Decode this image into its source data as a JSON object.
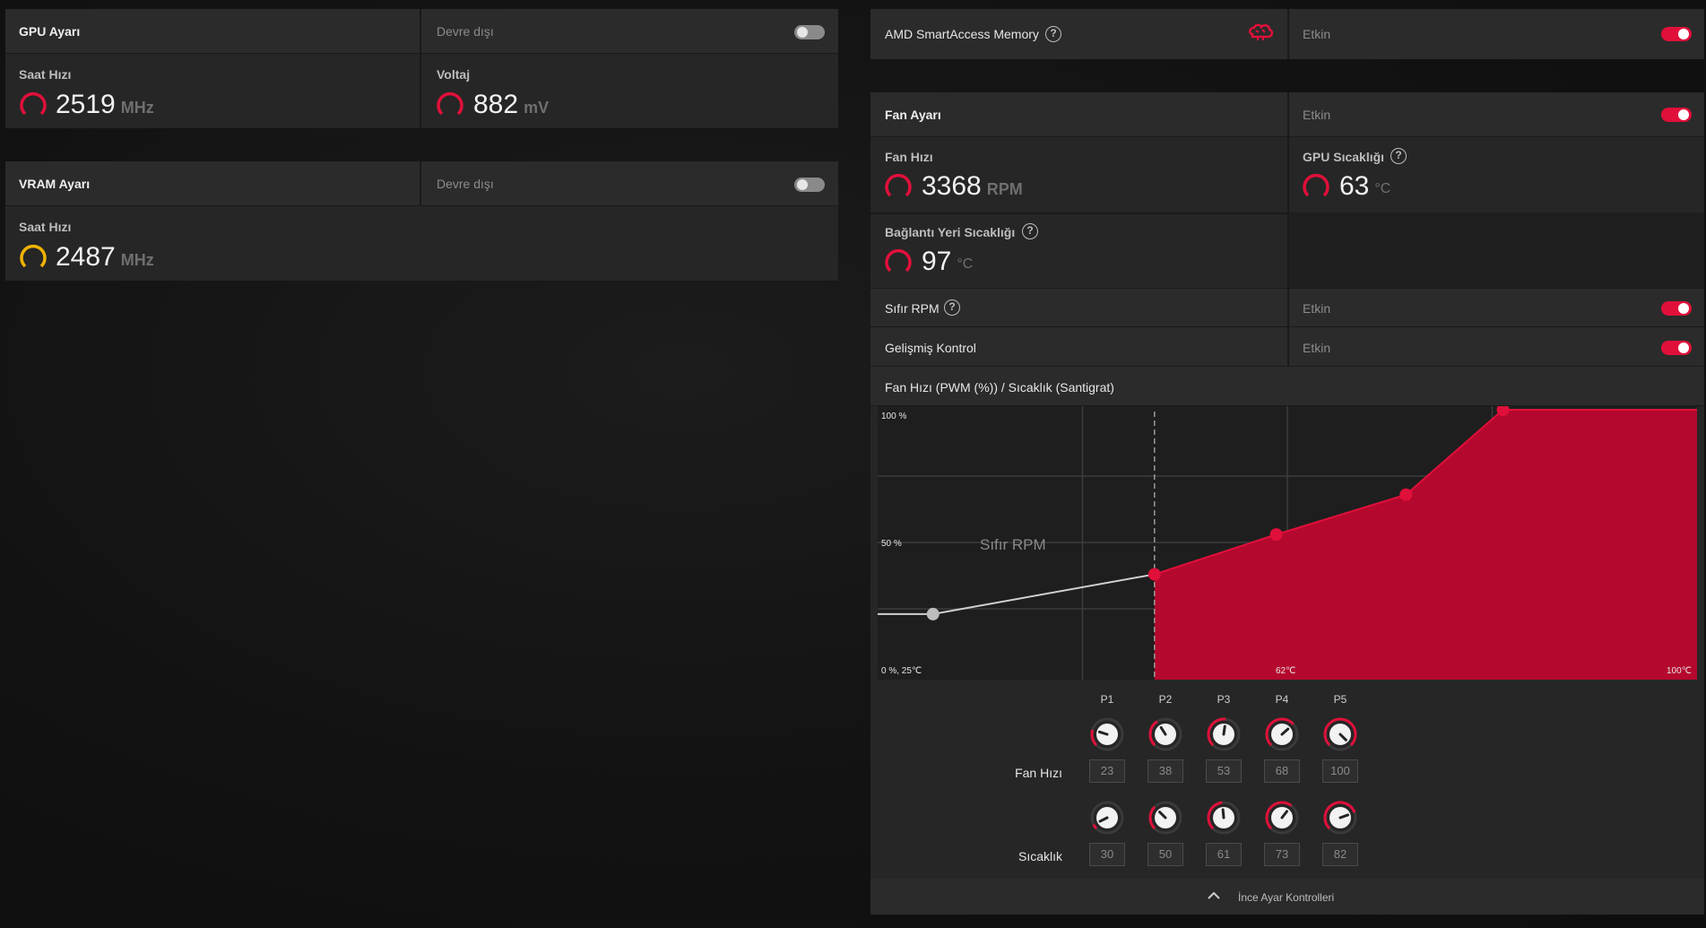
{
  "gpu": {
    "title": "GPU Ayarı",
    "status": "Devre dışı",
    "clock_label": "Saat Hızı",
    "clock_value": "2519",
    "clock_unit": "MHz",
    "voltage_label": "Voltaj",
    "voltage_value": "882",
    "voltage_unit": "mV"
  },
  "vram": {
    "title": "VRAM Ayarı",
    "status": "Devre dışı",
    "clock_label": "Saat Hızı",
    "clock_value": "2487",
    "clock_unit": "MHz"
  },
  "sam": {
    "title": "AMD SmartAccess Memory",
    "help": "?",
    "status": "Etkin"
  },
  "fan": {
    "title": "Fan Ayarı",
    "status": "Etkin",
    "speed_label": "Fan Hızı",
    "speed_value": "3368",
    "speed_unit": "RPM",
    "gpu_temp_label": "GPU Sıcaklığı",
    "gpu_temp_value": "63",
    "gpu_temp_unit": "°C",
    "junction_label": "Bağlantı Yeri Sıcaklığı",
    "junction_value": "97",
    "junction_unit": "°C",
    "zero_rpm_label": "Sıfır RPM",
    "zero_rpm_status": "Etkin",
    "advanced_label": "Gelişmiş Kontrol",
    "advanced_status": "Etkin",
    "help": "?"
  },
  "chart_data": {
    "type": "area",
    "title": "Fan Hızı (PWM (%)) / Sıcaklık (Santigrat)",
    "y_top_label": "100 %",
    "y_mid_label": "50 %",
    "origin_label": "0 %, 25℃",
    "x_mid_label": "62℃",
    "x_max_label": "100℃",
    "zero_rpm_zone_label": "Sıfır RPM",
    "points": [
      {
        "name": "P1",
        "temp": 30,
        "fan": 23
      },
      {
        "name": "P2",
        "temp": 50,
        "fan": 38
      },
      {
        "name": "P3",
        "temp": 61,
        "fan": 53
      },
      {
        "name": "P4",
        "temp": 73,
        "fan": 68
      },
      {
        "name": "P5",
        "temp": 82,
        "fan": 100
      }
    ],
    "fill_color": "#b5082e",
    "point_color": "#e0103a"
  },
  "points_table": {
    "fan_label": "Fan Hızı",
    "temp_label": "Sıcaklık",
    "headers": [
      "P1",
      "P2",
      "P3",
      "P4",
      "P5"
    ],
    "fan": [
      "23",
      "38",
      "53",
      "68",
      "100"
    ],
    "temp": [
      "30",
      "50",
      "61",
      "73",
      "82"
    ]
  },
  "footer": {
    "label": "İnce Ayar Kontrolleri",
    "chevron_icon": "chevron-up-icon"
  },
  "colors": {
    "accent": "#e0103a",
    "vram_gauge": "#f0b400"
  }
}
